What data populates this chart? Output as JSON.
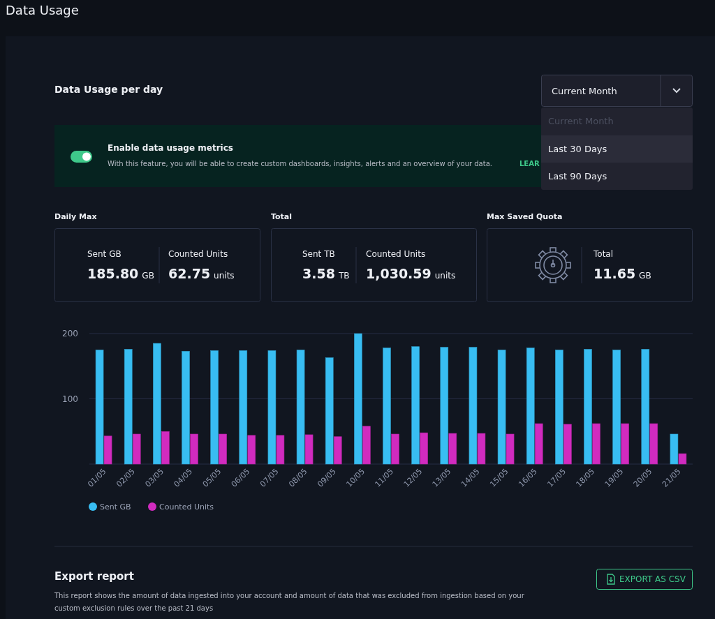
{
  "chart_data": [
    {
      "type": "other",
      "title": "Data Usage",
      "annotations": [
        "Data Usage per day",
        "Current Month",
        "Current Month",
        "Last 30 Days",
        "Last 90 Days",
        "Enable data usage metrics",
        "With this feature, you will be able to create custom dashboards, insights, alerts and an overview of your data.",
        "LEAR",
        "Daily Max",
        "Sent GB",
        "185.80",
        "GB",
        "Counted Units",
        "62.75",
        "units",
        "Total",
        "Sent TB",
        "3.58",
        "TB",
        "Counted Units",
        "1,030.59",
        "units",
        "Max Saved Quota",
        "Total",
        "11.65",
        "GB",
        "Export report",
        "This report shows the amount of data ingested into your account and amount of data that was excluded from ingestion based on your",
        "custom exclusion rules over the past 21 days",
        "EXPORT AS CSV"
      ]
    },
    {
      "type": "bar",
      "categories": [
        "01/05",
        "02/05",
        "03/05",
        "04/05",
        "05/05",
        "06/05",
        "07/05",
        "08/05",
        "09/05",
        "10/05",
        "11/05",
        "12/05",
        "13/05",
        "14/05",
        "15/05",
        "16/05",
        "17/05",
        "18/05",
        "19/05",
        "20/05",
        "21/05"
      ],
      "series": [
        {
          "name": "Sent GB",
          "color": "#38bdf2",
          "values": [
            175,
            176,
            185,
            173,
            174,
            174,
            174,
            175,
            163,
            200,
            178,
            180,
            179,
            179,
            175,
            178,
            175,
            176,
            175,
            176,
            46
          ]
        },
        {
          "name": "Counted Units",
          "color": "#d12bbf",
          "values": [
            43,
            46,
            50,
            46,
            46,
            44,
            44,
            45,
            42,
            58,
            46,
            48,
            47,
            47,
            46,
            62,
            61,
            62,
            62,
            62,
            16
          ]
        }
      ],
      "ylim": [
        0,
        200
      ],
      "yticks": [
        100,
        200
      ],
      "grid": "y",
      "legend": "bottom left"
    }
  ]
}
